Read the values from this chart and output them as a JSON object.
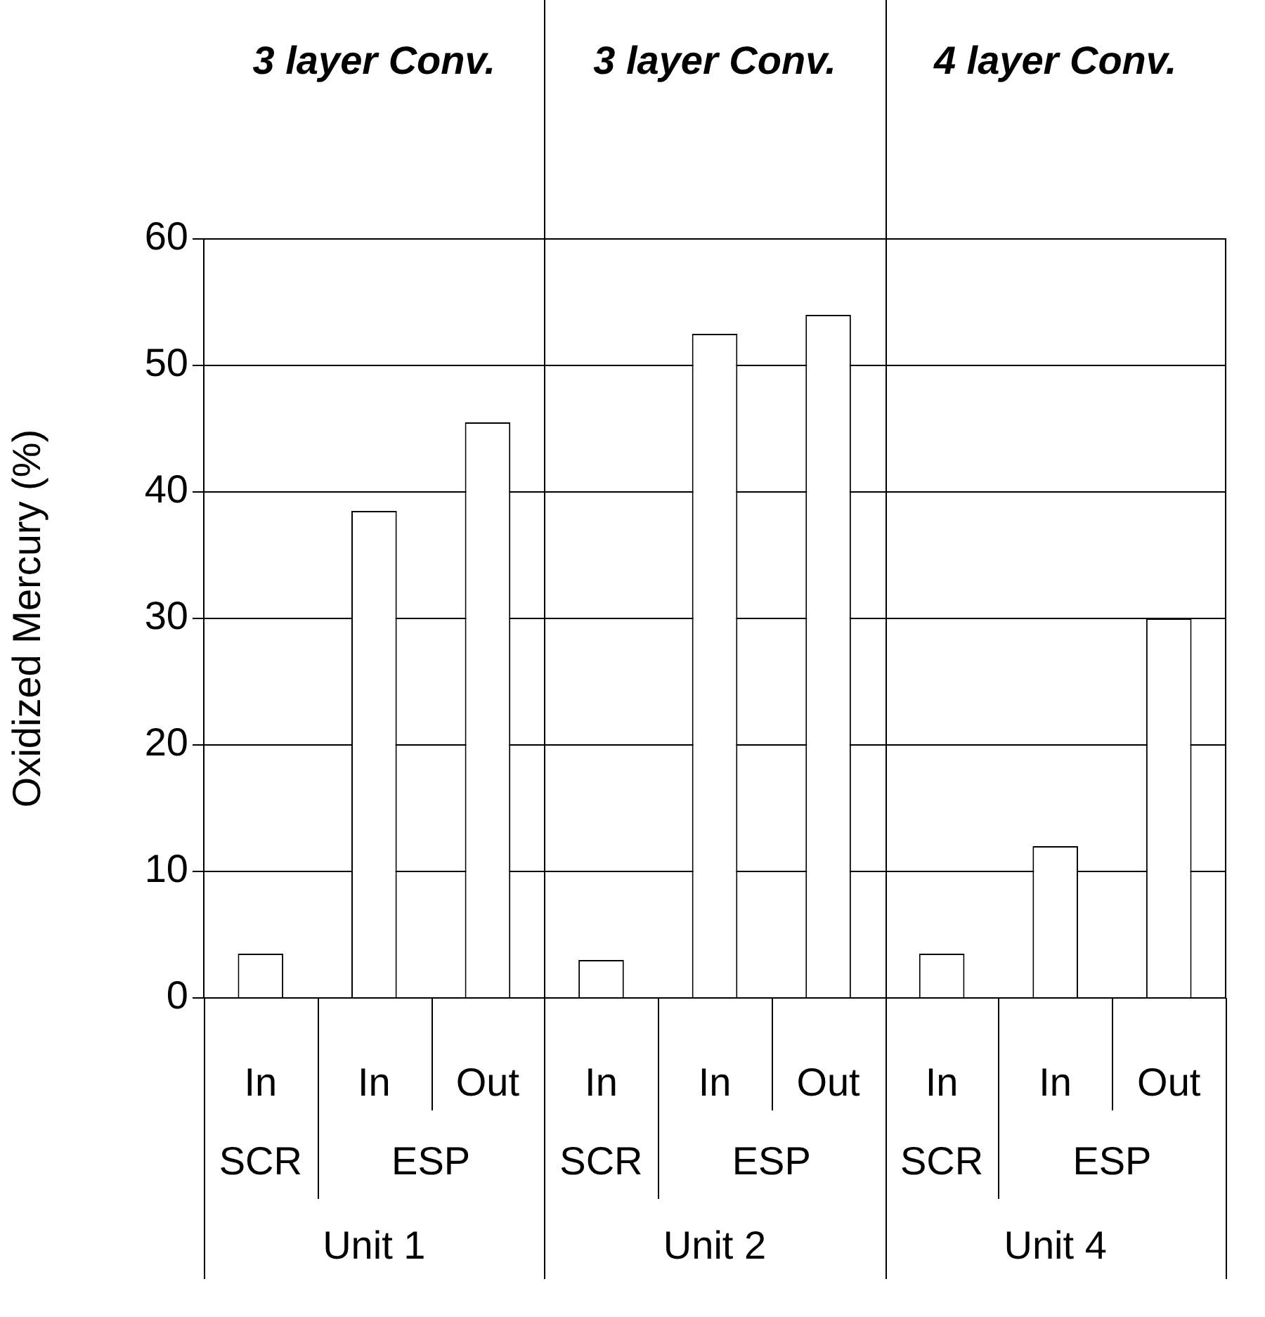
{
  "chart_data": {
    "type": "bar",
    "ylabel": "Oxidized Mercury (%)",
    "categories": [
      "In",
      "In",
      "Out",
      "In",
      "In",
      "Out",
      "In",
      "In",
      "Out"
    ],
    "values": [
      3.5,
      38.5,
      45.5,
      3,
      52.5,
      54,
      3.5,
      12,
      30
    ],
    "color": "#ffffff",
    "ylim": [
      0,
      60
    ],
    "yticks": [
      0,
      10,
      20,
      30,
      40,
      50,
      60
    ],
    "grid": "y",
    "annotations": [
      "3 layer Conv.",
      "3 layer Conv.",
      "4 layer Conv.",
      "SCR",
      "ESP",
      "SCR",
      "ESP",
      "SCR",
      "ESP",
      "Unit 1",
      "Unit 2",
      "Unit 4"
    ]
  }
}
